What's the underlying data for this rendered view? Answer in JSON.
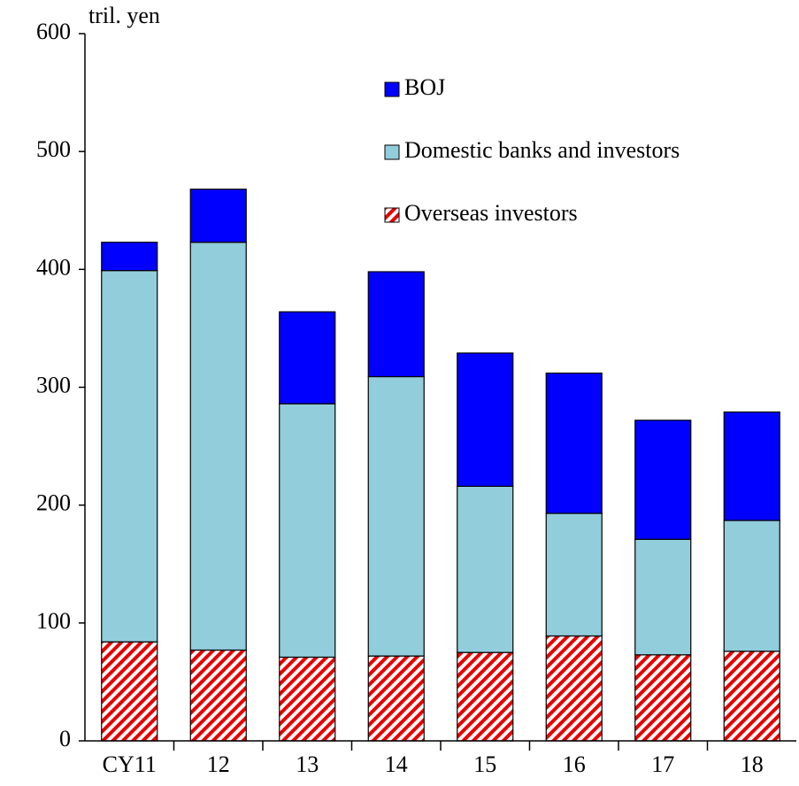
{
  "chart_data": {
    "type": "stacked_bar",
    "unit_label": "tril. yen",
    "categories": [
      "CY11",
      "12",
      "13",
      "14",
      "15",
      "16",
      "17",
      "18"
    ],
    "series": [
      {
        "name": "Overseas investors",
        "color": "#e60000",
        "pattern": "hatch",
        "values": [
          84,
          77,
          71,
          72,
          75,
          89,
          73,
          76
        ]
      },
      {
        "name": "Domestic banks and investors",
        "color": "#92cddc",
        "values": [
          315,
          346,
          215,
          237,
          141,
          104,
          98,
          111
        ]
      },
      {
        "name": "BOJ",
        "color": "#0000ff",
        "values": [
          24,
          45,
          78,
          89,
          113,
          119,
          101,
          92
        ]
      }
    ],
    "ylim": [
      0,
      600
    ],
    "yticks": [
      0,
      100,
      200,
      300,
      400,
      500,
      600
    ]
  }
}
